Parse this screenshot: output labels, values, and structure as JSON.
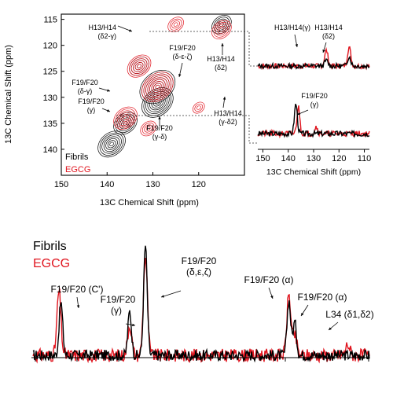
{
  "colors": {
    "fibrils": "#000000",
    "egcg": "#e0141e",
    "connector": "#333333"
  },
  "chart_data": [
    {
      "type": "heatmap",
      "xlabel": "13C Chemical Shift (ppm)",
      "ylabel": "13C Chemical Shift (ppm)",
      "xlim": [
        150,
        110
      ],
      "ylim": [
        115,
        145
      ],
      "xticks": [
        150,
        140,
        130,
        120
      ],
      "yticks": [
        115,
        120,
        125,
        130,
        135,
        140
      ],
      "legend": [
        "Fibrils",
        "EGCG"
      ],
      "annotations": [
        {
          "line1": "H13/H14",
          "line2": "(δ2-γ)"
        },
        {
          "line1": "F19/F20",
          "line2": "(δ-ε-ζ)"
        },
        {
          "line1": "F19/F20",
          "line2": "(δ-γ)"
        },
        {
          "line1": "F19/F20",
          "line2": "(γ)"
        },
        {
          "line1": "F19/F20",
          "line2": "(γ-δ)"
        },
        {
          "line1": "H13/H14",
          "line2": "(δ2)"
        },
        {
          "line1": "H13/H14",
          "line2": "(γ-δ2)"
        }
      ],
      "series": [
        {
          "name": "Fibrils",
          "peaks": [
            {
              "x": 133,
              "y": 124,
              "intensity": 0.5
            },
            {
              "x": 129,
              "y": 128,
              "intensity": 1.0
            },
            {
              "x": 129,
              "y": 131,
              "intensity": 0.9
            },
            {
              "x": 136,
              "y": 135,
              "intensity": 0.7
            },
            {
              "x": 139,
              "y": 139,
              "intensity": 0.8
            },
            {
              "x": 115,
              "y": 116,
              "intensity": 0.5
            }
          ]
        },
        {
          "name": "EGCG",
          "peaks": [
            {
              "x": 133,
              "y": 124,
              "intensity": 0.7
            },
            {
              "x": 129,
              "y": 128,
              "intensity": 0.9
            },
            {
              "x": 136,
              "y": 134,
              "intensity": 0.7
            },
            {
              "x": 125,
              "y": 116,
              "intensity": 0.4
            },
            {
              "x": 115,
              "y": 117,
              "intensity": 0.6
            },
            {
              "x": 120,
              "y": 132,
              "intensity": 0.3
            },
            {
              "x": 131,
              "y": 136,
              "intensity": 0.4
            }
          ]
        }
      ]
    },
    {
      "type": "line",
      "xlabel": "13C Chemical Shift (ppm)",
      "xlim": [
        150,
        110
      ],
      "xticks": [
        150,
        140,
        130,
        120,
        110
      ],
      "annotations": [
        {
          "line1": "H13/H14(γ)"
        },
        {
          "line1": "H13/H14",
          "line2": "(δ2)"
        }
      ],
      "series": [
        {
          "name": "Fibrils",
          "peaks": [
            {
              "x": 125,
              "h": 0.18
            },
            {
              "x": 116,
              "h": 0.3
            }
          ]
        },
        {
          "name": "EGCG",
          "peaks": [
            {
              "x": 125,
              "h": 0.5
            },
            {
              "x": 116,
              "h": 0.6
            }
          ]
        }
      ]
    },
    {
      "type": "line",
      "annotations": [
        {
          "line1": "F19/F20",
          "line2": "(γ)"
        }
      ],
      "series": [
        {
          "name": "Fibrils",
          "peaks": [
            {
              "x": 137,
              "h": 0.85
            }
          ]
        },
        {
          "name": "EGCG",
          "peaks": [
            {
              "x": 136,
              "h": 0.75
            },
            {
              "x": 129,
              "h": 0.2
            }
          ]
        }
      ]
    },
    {
      "type": "line",
      "legend": [
        "Fibrils",
        "EGCG"
      ],
      "annotations": [
        {
          "line1": "F19/F20 (C')"
        },
        {
          "line1": "F19/F20",
          "line2": "(γ)"
        },
        {
          "line1": "F19/F20",
          "line2": "(δ,ε,ζ)"
        },
        {
          "line1": "F19/F20 (α)"
        },
        {
          "line1": "F19/F20 (α)"
        },
        {
          "line1": "L34 (δ1,δ2)"
        }
      ],
      "series": [
        {
          "name": "Fibrils",
          "peaks": [
            {
              "x": 172,
              "h": 0.48
            },
            {
              "x": 137,
              "h": 0.4
            },
            {
              "x": 129,
              "h": 1.0
            },
            {
              "x": 56,
              "h": 0.5
            },
            {
              "x": 53,
              "h": 0.3
            }
          ]
        },
        {
          "name": "EGCG",
          "peaks": [
            {
              "x": 173,
              "h": 0.58
            },
            {
              "x": 137,
              "h": 0.28
            },
            {
              "x": 129,
              "h": 0.9
            },
            {
              "x": 56,
              "h": 0.55
            },
            {
              "x": 53,
              "h": 0.18
            },
            {
              "x": 26,
              "h": 0.1
            }
          ]
        }
      ]
    }
  ]
}
